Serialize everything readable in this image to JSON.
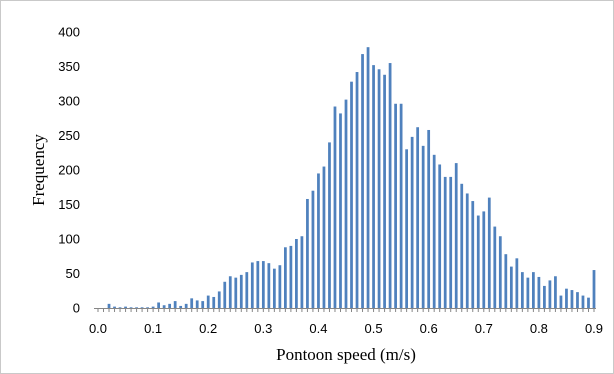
{
  "chart_data": {
    "type": "bar",
    "title": "",
    "xlabel": "Pontoon speed (m/s)",
    "ylabel": "Frequency",
    "xlim": [
      0.0,
      0.9
    ],
    "ylim": [
      0,
      400
    ],
    "xticks": [
      "0.0",
      "0.1",
      "0.2",
      "0.3",
      "0.4",
      "0.5",
      "0.6",
      "0.7",
      "0.8",
      "0.9"
    ],
    "yticks": [
      "0",
      "50",
      "100",
      "150",
      "200",
      "250",
      "300",
      "350",
      "400"
    ],
    "grid": false,
    "legend": "none",
    "bar_color": "#4f81bd",
    "bin_width": 0.01,
    "x": [
      0.0,
      0.01,
      0.02,
      0.03,
      0.04,
      0.05,
      0.06,
      0.07,
      0.08,
      0.09,
      0.1,
      0.11,
      0.12,
      0.13,
      0.14,
      0.15,
      0.16,
      0.17,
      0.18,
      0.19,
      0.2,
      0.21,
      0.22,
      0.23,
      0.24,
      0.25,
      0.26,
      0.27,
      0.28,
      0.29,
      0.3,
      0.31,
      0.32,
      0.33,
      0.34,
      0.35,
      0.36,
      0.37,
      0.38,
      0.39,
      0.4,
      0.41,
      0.42,
      0.43,
      0.44,
      0.45,
      0.46,
      0.47,
      0.48,
      0.49,
      0.5,
      0.51,
      0.52,
      0.53,
      0.54,
      0.55,
      0.56,
      0.57,
      0.58,
      0.59,
      0.6,
      0.61,
      0.62,
      0.63,
      0.64,
      0.65,
      0.66,
      0.67,
      0.68,
      0.69,
      0.7,
      0.71,
      0.72,
      0.73,
      0.74,
      0.75,
      0.76,
      0.77,
      0.78,
      0.79,
      0.8,
      0.81,
      0.82,
      0.83,
      0.84,
      0.85,
      0.86,
      0.87,
      0.88,
      0.89,
      0.9
    ],
    "values": [
      0,
      0,
      6,
      2,
      1,
      2,
      1,
      1,
      1,
      1,
      2,
      8,
      4,
      6,
      10,
      3,
      6,
      14,
      11,
      10,
      18,
      16,
      24,
      38,
      46,
      44,
      48,
      52,
      66,
      68,
      68,
      65,
      57,
      62,
      88,
      90,
      100,
      104,
      158,
      170,
      195,
      205,
      240,
      292,
      282,
      302,
      328,
      342,
      368,
      378,
      352,
      346,
      338,
      355,
      296,
      296,
      230,
      248,
      262,
      235,
      258,
      222,
      208,
      190,
      190,
      210,
      180,
      166,
      155,
      134,
      140,
      160,
      118,
      104,
      78,
      60,
      72,
      52,
      44,
      52,
      45,
      32,
      40,
      46,
      18,
      28,
      26,
      23,
      18,
      15,
      55
    ]
  }
}
